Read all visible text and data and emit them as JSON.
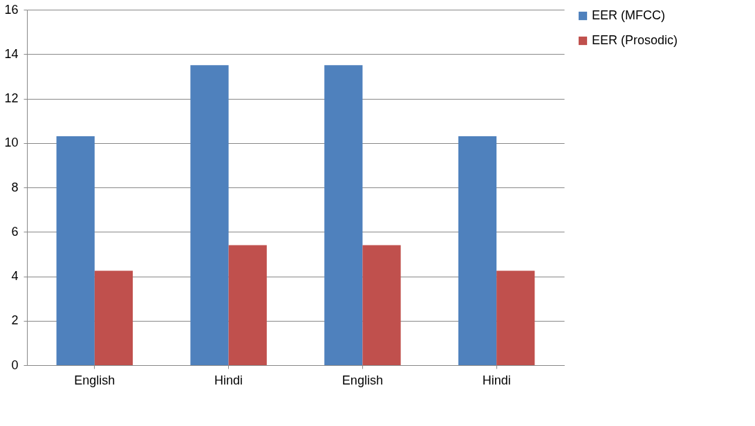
{
  "chart_data": {
    "type": "bar",
    "categories": [
      "English",
      "Hindi",
      "English",
      "Hindi"
    ],
    "series": [
      {
        "name": "EER (MFCC)",
        "color": "#4f81bd",
        "values": [
          10.3,
          13.5,
          13.5,
          10.3
        ]
      },
      {
        "name": "EER (Prosodic)",
        "color": "#c0504d",
        "values": [
          4.25,
          5.4,
          5.4,
          4.25
        ]
      }
    ],
    "ylim": [
      0,
      16
    ],
    "yticks": [
      0,
      2,
      4,
      6,
      8,
      10,
      12,
      14,
      16
    ],
    "grid": "y",
    "legend": "right"
  }
}
